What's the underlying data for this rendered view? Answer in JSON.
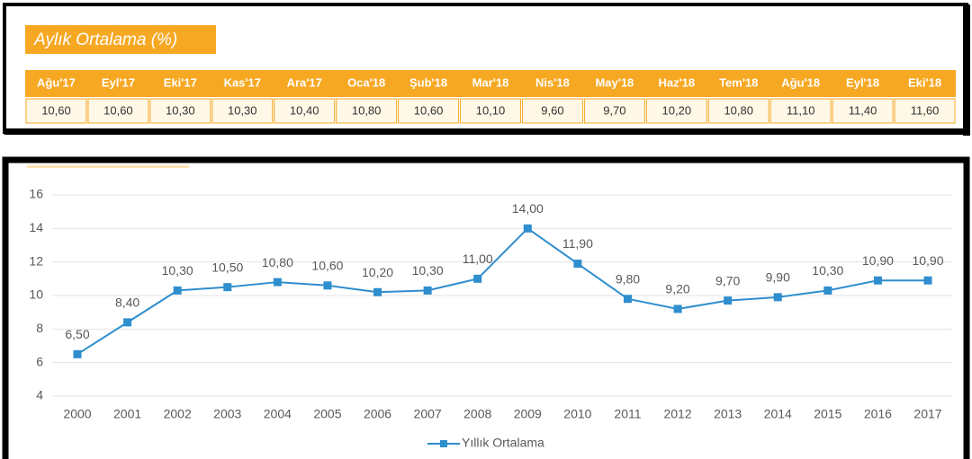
{
  "table": {
    "title": "Aylık Ortalama (%)",
    "columns": [
      "Ağu'17",
      "Eyl'17",
      "Eki'17",
      "Kas'17",
      "Ara'17",
      "Oca'18",
      "Şub'18",
      "Mar'18",
      "Nis'18",
      "May'18",
      "Haz'18",
      "Tem'18",
      "Ağu'18",
      "Eyl'18",
      "Eki'18"
    ],
    "rows": [
      [
        "10,60",
        "10,60",
        "10,30",
        "10,30",
        "10,40",
        "10,80",
        "10,60",
        "10,10",
        "9,60",
        "9,70",
        "10,20",
        "10,80",
        "11,10",
        "11,40",
        "11,60"
      ]
    ]
  },
  "chart_data": {
    "type": "line",
    "categories": [
      "2000",
      "2001",
      "2002",
      "2003",
      "2004",
      "2005",
      "2006",
      "2007",
      "2008",
      "2009",
      "2010",
      "2011",
      "2012",
      "2013",
      "2014",
      "2015",
      "2016",
      "2017"
    ],
    "series": [
      {
        "name": "Yıllık Ortalama",
        "color": "#2e8ece",
        "values": [
          6.5,
          8.4,
          10.3,
          10.5,
          10.8,
          10.6,
          10.2,
          10.3,
          11.0,
          14.0,
          11.9,
          9.8,
          9.2,
          9.7,
          9.9,
          10.3,
          10.9,
          10.9
        ],
        "value_labels": [
          "6,50",
          "8,40",
          "10,30",
          "10,50",
          "10,80",
          "10,60",
          "10,20",
          "10,30",
          "11,00",
          "14,00",
          "11,90",
          "9,80",
          "9,20",
          "9,70",
          "9,90",
          "10,30",
          "10,90",
          "10,90"
        ]
      }
    ],
    "ylim": [
      4,
      16
    ],
    "yticks": [
      4,
      6,
      8,
      10,
      12,
      14,
      16
    ],
    "grid": true,
    "legend": "bottom"
  }
}
